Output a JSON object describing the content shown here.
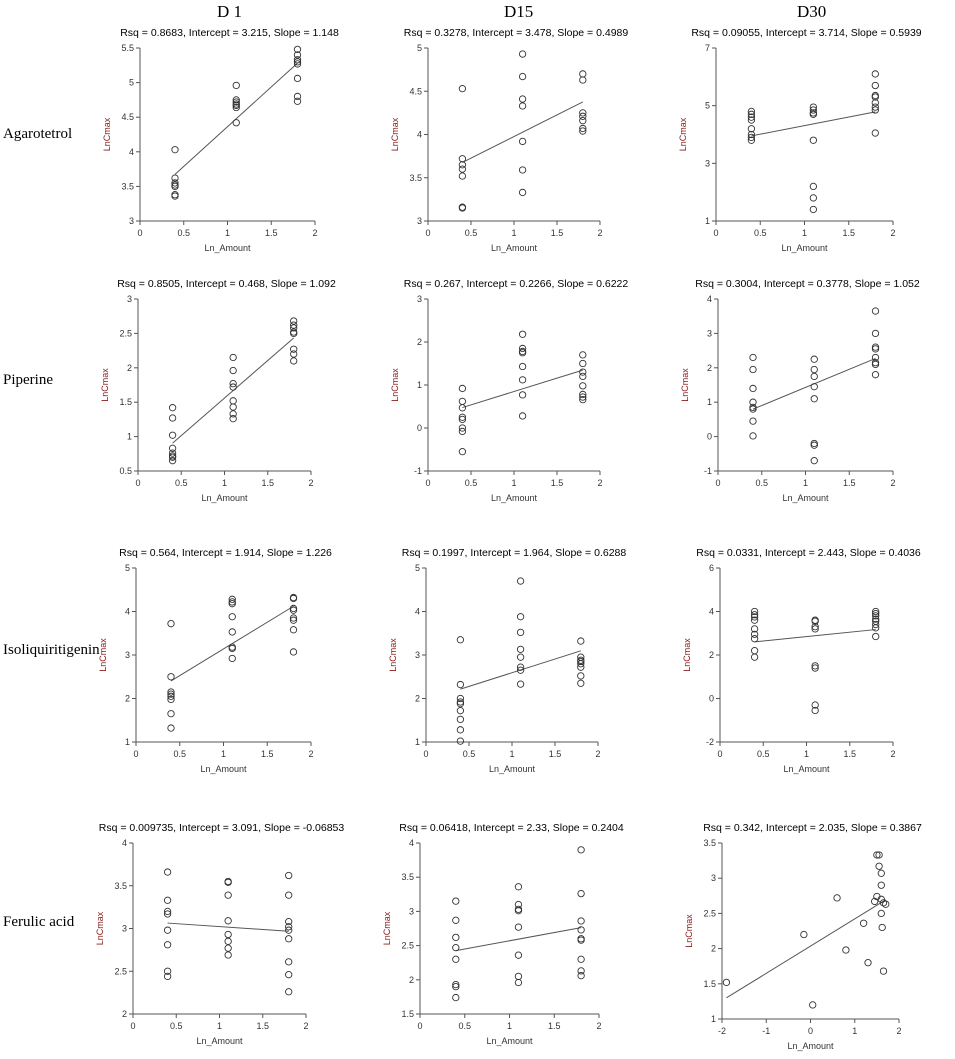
{
  "columns": [
    "D 1",
    "D15",
    "D30"
  ],
  "rows": [
    "Agarotetrol",
    "Piperine",
    "Isoliquiritigenin",
    "Ferulic acid"
  ],
  "style": {
    "axis_color": "#555555",
    "point_color": "#333333",
    "line_color": "#555555",
    "ylabel_color": "#8B1A1A"
  },
  "chart_data": [
    {
      "type": "scatter",
      "row": "Agarotetrol",
      "column": "D 1",
      "title": "Rsq = 0.8683, Intercept = 3.215, Slope = 1.148",
      "xlabel": "Ln_Amount",
      "ylabel": "LnCmax",
      "xlim": [
        0,
        2
      ],
      "ylim": [
        3,
        5.5
      ],
      "xticks": [
        0,
        0.5,
        1,
        1.5,
        2
      ],
      "xtick_labels": [
        "0",
        "0.5",
        "1",
        "1.5",
        "2"
      ],
      "yticks": [
        3,
        3.5,
        4,
        4.5,
        5,
        5.5
      ],
      "ytick_labels": [
        "3",
        "3.5",
        "4",
        "4.5",
        "5",
        "5.5"
      ],
      "fit": {
        "intercept": 3.215,
        "slope": 1.148,
        "x_range": [
          0.4,
          1.8
        ]
      },
      "x": [
        0.4,
        0.4,
        0.4,
        0.4,
        0.4,
        0.4,
        0.4,
        1.1,
        1.1,
        1.1,
        1.1,
        1.1,
        1.1,
        1.1,
        1.8,
        1.8,
        1.8,
        1.8,
        1.8,
        1.8,
        1.8,
        1.8
      ],
      "y": [
        4.03,
        3.62,
        3.55,
        3.52,
        3.5,
        3.38,
        3.36,
        4.96,
        4.75,
        4.72,
        4.69,
        4.67,
        4.64,
        4.42,
        5.48,
        5.4,
        5.33,
        5.3,
        5.27,
        5.06,
        4.8,
        4.73
      ]
    },
    {
      "type": "scatter",
      "row": "Agarotetrol",
      "column": "D15",
      "title": "Rsq = 0.3278, Intercept = 3.478, Slope = 0.4989",
      "xlabel": "Ln_Amount",
      "ylabel": "LnCmax",
      "xlim": [
        0,
        2
      ],
      "ylim": [
        3,
        5
      ],
      "xticks": [
        0,
        0.5,
        1,
        1.5,
        2
      ],
      "xtick_labels": [
        "0",
        "0.5",
        "1",
        "1.5",
        "2"
      ],
      "yticks": [
        3,
        3.5,
        4,
        4.5,
        5
      ],
      "ytick_labels": [
        "3",
        "3.5",
        "4",
        "4.5",
        "5"
      ],
      "fit": {
        "intercept": 3.478,
        "slope": 0.4989,
        "x_range": [
          0.4,
          1.8
        ]
      },
      "x": [
        0.4,
        0.4,
        0.4,
        0.4,
        0.4,
        0.4,
        0.4,
        1.1,
        1.1,
        1.1,
        1.1,
        1.1,
        1.1,
        1.1,
        1.8,
        1.8,
        1.8,
        1.8,
        1.8,
        1.8,
        1.8
      ],
      "y": [
        4.53,
        3.72,
        3.65,
        3.6,
        3.52,
        3.16,
        3.15,
        4.93,
        4.67,
        4.41,
        4.33,
        3.92,
        3.59,
        3.33,
        4.7,
        4.63,
        4.25,
        4.21,
        4.16,
        4.07,
        4.04
      ]
    },
    {
      "type": "scatter",
      "row": "Agarotetrol",
      "column": "D30",
      "title": "Rsq = 0.09055, Intercept = 3.714, Slope = 0.5939",
      "xlabel": "Ln_Amount",
      "ylabel": "LnCmax",
      "xlim": [
        0,
        2
      ],
      "ylim": [
        1,
        7
      ],
      "xticks": [
        0,
        0.5,
        1,
        1.5,
        2
      ],
      "xtick_labels": [
        "0",
        "0.5",
        "1",
        "1.5",
        "2"
      ],
      "yticks": [
        1,
        3,
        5,
        7
      ],
      "ytick_labels": [
        "1",
        "3",
        "5",
        "7"
      ],
      "fit": {
        "intercept": 3.714,
        "slope": 0.5939,
        "x_range": [
          0.4,
          1.8
        ]
      },
      "x": [
        0.4,
        0.4,
        0.4,
        0.4,
        0.4,
        0.4,
        0.4,
        0.4,
        1.1,
        1.1,
        1.1,
        1.1,
        1.1,
        1.1,
        1.1,
        1.1,
        1.8,
        1.8,
        1.8,
        1.8,
        1.8,
        1.8,
        1.8,
        1.8
      ],
      "y": [
        4.8,
        4.7,
        4.6,
        4.5,
        4.2,
        4.0,
        3.9,
        3.8,
        4.95,
        4.85,
        4.75,
        4.7,
        3.8,
        2.2,
        1.8,
        1.4,
        6.1,
        5.7,
        5.35,
        5.3,
        5.1,
        4.95,
        4.85,
        4.05
      ]
    },
    {
      "type": "scatter",
      "row": "Piperine",
      "column": "D 1",
      "title": "Rsq = 0.8505, Intercept = 0.468, Slope = 1.092",
      "xlabel": "Ln_Amount",
      "ylabel": "LnCmax",
      "xlim": [
        0,
        2
      ],
      "ylim": [
        0.5,
        3
      ],
      "xticks": [
        0,
        0.5,
        1,
        1.5,
        2
      ],
      "xtick_labels": [
        "0",
        "0.5",
        "1",
        "1.5",
        "2"
      ],
      "yticks": [
        0.5,
        1,
        1.5,
        2,
        2.5,
        3
      ],
      "ytick_labels": [
        "0.5",
        "1",
        "1.5",
        "2",
        "2.5",
        "3"
      ],
      "fit": {
        "intercept": 0.468,
        "slope": 1.092,
        "x_range": [
          0.4,
          1.8
        ]
      },
      "x": [
        0.4,
        0.4,
        0.4,
        0.4,
        0.4,
        0.4,
        0.4,
        0.4,
        1.1,
        1.1,
        1.1,
        1.1,
        1.1,
        1.1,
        1.1,
        1.1,
        1.8,
        1.8,
        1.8,
        1.8,
        1.8,
        1.8,
        1.8,
        1.8
      ],
      "y": [
        1.42,
        1.27,
        1.02,
        0.83,
        0.76,
        0.72,
        0.7,
        0.65,
        2.15,
        1.96,
        1.77,
        1.72,
        1.52,
        1.43,
        1.33,
        1.26,
        2.68,
        2.62,
        2.58,
        2.52,
        2.5,
        2.27,
        2.2,
        2.1
      ]
    },
    {
      "type": "scatter",
      "row": "Piperine",
      "column": "D15",
      "title": "Rsq = 0.267, Intercept = 0.2266, Slope = 0.6222",
      "xlabel": "Ln_Amount",
      "ylabel": "LnCmax",
      "xlim": [
        0,
        2
      ],
      "ylim": [
        -1,
        3
      ],
      "xticks": [
        0,
        0.5,
        1,
        1.5,
        2
      ],
      "xtick_labels": [
        "0",
        "0.5",
        "1",
        "1.5",
        "2"
      ],
      "yticks": [
        -1,
        0,
        1,
        2,
        3
      ],
      "ytick_labels": [
        "-1",
        "0",
        "1",
        "2",
        "3"
      ],
      "fit": {
        "intercept": 0.2266,
        "slope": 0.6222,
        "x_range": [
          0.4,
          1.8
        ]
      },
      "x": [
        0.4,
        0.4,
        0.4,
        0.4,
        0.4,
        0.4,
        0.4,
        0.4,
        1.1,
        1.1,
        1.1,
        1.1,
        1.1,
        1.1,
        1.1,
        1.1,
        1.8,
        1.8,
        1.8,
        1.8,
        1.8,
        1.8,
        1.8,
        1.8
      ],
      "y": [
        0.92,
        0.62,
        0.47,
        0.25,
        0.2,
        0.0,
        -0.08,
        -0.55,
        2.18,
        1.85,
        1.78,
        1.75,
        1.43,
        1.12,
        0.77,
        0.28,
        1.7,
        1.5,
        1.3,
        1.2,
        0.98,
        0.78,
        0.72,
        0.66
      ]
    },
    {
      "type": "scatter",
      "row": "Piperine",
      "column": "D30",
      "title": "Rsq = 0.3004, Intercept = 0.3778, Slope = 1.052",
      "xlabel": "Ln_Amount",
      "ylabel": "LnCmax",
      "xlim": [
        0,
        2
      ],
      "ylim": [
        -1,
        4
      ],
      "xticks": [
        0,
        0.5,
        1,
        1.5,
        2
      ],
      "xtick_labels": [
        "0",
        "0.5",
        "1",
        "1.5",
        "2"
      ],
      "yticks": [
        -1,
        0,
        1,
        2,
        3,
        4
      ],
      "ytick_labels": [
        "-1",
        "0",
        "1",
        "2",
        "3",
        "4"
      ],
      "fit": {
        "intercept": 0.3778,
        "slope": 1.052,
        "x_range": [
          0.4,
          1.8
        ]
      },
      "x": [
        0.4,
        0.4,
        0.4,
        0.4,
        0.4,
        0.4,
        0.4,
        0.4,
        1.1,
        1.1,
        1.1,
        1.1,
        1.1,
        1.1,
        1.1,
        1.1,
        1.8,
        1.8,
        1.8,
        1.8,
        1.8,
        1.8,
        1.8,
        1.8
      ],
      "y": [
        2.3,
        1.95,
        1.4,
        1.0,
        0.85,
        0.8,
        0.45,
        0.02,
        2.25,
        1.95,
        1.75,
        1.45,
        1.1,
        -0.2,
        -0.25,
        -0.7,
        3.65,
        3.0,
        2.6,
        2.55,
        2.3,
        2.15,
        2.1,
        1.8
      ]
    },
    {
      "type": "scatter",
      "row": "Isoliquiritigenin",
      "column": "D 1",
      "title": "Rsq = 0.564, Intercept = 1.914, Slope = 1.226",
      "xlabel": "Ln_Amount",
      "ylabel": "LnCmax",
      "xlim": [
        0,
        2
      ],
      "ylim": [
        1,
        5
      ],
      "xticks": [
        0,
        0.5,
        1,
        1.5,
        2
      ],
      "xtick_labels": [
        "0",
        "0.5",
        "1",
        "1.5",
        "2"
      ],
      "yticks": [
        1,
        2,
        3,
        4,
        5
      ],
      "ytick_labels": [
        "1",
        "2",
        "3",
        "4",
        "5"
      ],
      "fit": {
        "intercept": 1.914,
        "slope": 1.226,
        "x_range": [
          0.4,
          1.8
        ]
      },
      "x": [
        0.4,
        0.4,
        0.4,
        0.4,
        0.4,
        0.4,
        0.4,
        0.4,
        1.1,
        1.1,
        1.1,
        1.1,
        1.1,
        1.1,
        1.1,
        1.1,
        1.8,
        1.8,
        1.8,
        1.8,
        1.8,
        1.8,
        1.8,
        1.8
      ],
      "y": [
        3.72,
        2.5,
        2.15,
        2.1,
        2.05,
        1.98,
        1.65,
        1.32,
        4.28,
        4.22,
        4.18,
        3.88,
        3.53,
        3.18,
        3.15,
        2.92,
        4.32,
        4.3,
        4.07,
        4.03,
        3.85,
        3.8,
        3.58,
        3.07
      ]
    },
    {
      "type": "scatter",
      "row": "Isoliquiritigenin",
      "column": "D15",
      "title": "Rsq = 0.1997, Intercept = 1.964, Slope = 0.6288",
      "xlabel": "Ln_Amount",
      "ylabel": "LnCmax",
      "xlim": [
        0,
        2
      ],
      "ylim": [
        1,
        5
      ],
      "xticks": [
        0,
        0.5,
        1,
        1.5,
        2
      ],
      "xtick_labels": [
        "0",
        "0.5",
        "1",
        "1.5",
        "2"
      ],
      "yticks": [
        1,
        2,
        3,
        4,
        5
      ],
      "ytick_labels": [
        "1",
        "2",
        "3",
        "4",
        "5"
      ],
      "fit": {
        "intercept": 1.964,
        "slope": 0.6288,
        "x_range": [
          0.4,
          1.8
        ]
      },
      "x": [
        0.4,
        0.4,
        0.4,
        0.4,
        0.4,
        0.4,
        0.4,
        0.4,
        0.4,
        1.1,
        1.1,
        1.1,
        1.1,
        1.1,
        1.1,
        1.1,
        1.1,
        1.8,
        1.8,
        1.8,
        1.8,
        1.8,
        1.8,
        1.8,
        1.8
      ],
      "y": [
        3.35,
        2.32,
        2.0,
        1.92,
        1.88,
        1.72,
        1.52,
        1.28,
        1.02,
        4.7,
        3.88,
        3.52,
        3.13,
        2.95,
        2.72,
        2.65,
        2.33,
        3.32,
        2.95,
        2.88,
        2.85,
        2.8,
        2.72,
        2.52,
        2.35
      ]
    },
    {
      "type": "scatter",
      "row": "Isoliquiritigenin",
      "column": "D30",
      "title": "Rsq = 0.0331, Intercept = 2.443, Slope = 0.4036",
      "xlabel": "Ln_Amount",
      "ylabel": "LnCmax",
      "xlim": [
        0,
        2
      ],
      "ylim": [
        -2,
        6
      ],
      "xticks": [
        0,
        0.5,
        1,
        1.5,
        2
      ],
      "xtick_labels": [
        "0",
        "0.5",
        "1",
        "1.5",
        "2"
      ],
      "yticks": [
        -2,
        0,
        2,
        4,
        6
      ],
      "ytick_labels": [
        "-2",
        "0",
        "2",
        "4",
        "6"
      ],
      "fit": {
        "intercept": 2.443,
        "slope": 0.4036,
        "x_range": [
          0.4,
          1.8
        ]
      },
      "x": [
        0.4,
        0.4,
        0.4,
        0.4,
        0.4,
        0.4,
        0.4,
        0.4,
        0.4,
        1.1,
        1.1,
        1.1,
        1.1,
        1.1,
        1.1,
        1.1,
        1.1,
        1.8,
        1.8,
        1.8,
        1.8,
        1.8,
        1.8,
        1.8,
        1.8
      ],
      "y": [
        4.0,
        3.75,
        3.6,
        3.2,
        2.95,
        2.75,
        2.2,
        1.9,
        3.85,
        3.6,
        3.55,
        3.3,
        3.2,
        1.5,
        1.4,
        -0.3,
        -0.55,
        4.0,
        3.9,
        3.8,
        3.65,
        3.55,
        3.4,
        3.25,
        2.85
      ]
    },
    {
      "type": "scatter",
      "row": "Ferulic acid",
      "column": "D 1",
      "title": "Rsq = 0.009735, Intercept = 3.091, Slope = -0.06853",
      "xlabel": "Ln_Amount",
      "ylabel": "LnCmax",
      "xlim": [
        0,
        2
      ],
      "ylim": [
        2,
        4
      ],
      "xticks": [
        0,
        0.5,
        1,
        1.5,
        2
      ],
      "xtick_labels": [
        "0",
        "0.5",
        "1",
        "1.5",
        "2"
      ],
      "yticks": [
        2,
        2.5,
        3,
        3.5,
        4
      ],
      "ytick_labels": [
        "2",
        "2.5",
        "3",
        "3.5",
        "4"
      ],
      "fit": {
        "intercept": 3.091,
        "slope": -0.06853,
        "x_range": [
          0.4,
          1.8
        ]
      },
      "x": [
        0.4,
        0.4,
        0.4,
        0.4,
        0.4,
        0.4,
        0.4,
        0.4,
        1.1,
        1.1,
        1.1,
        1.1,
        1.1,
        1.1,
        1.1,
        1.1,
        1.8,
        1.8,
        1.8,
        1.8,
        1.8,
        1.8,
        1.8,
        1.8,
        1.8
      ],
      "y": [
        3.66,
        3.33,
        3.2,
        3.17,
        2.98,
        2.81,
        2.5,
        2.44,
        3.55,
        3.54,
        3.39,
        3.09,
        2.93,
        2.85,
        2.77,
        2.69,
        3.62,
        3.39,
        3.08,
        3.02,
        2.88,
        2.61,
        2.46,
        2.26,
        2.98
      ]
    },
    {
      "type": "scatter",
      "row": "Ferulic acid",
      "column": "D15",
      "title": "Rsq = 0.06418, Intercept = 2.33, Slope = 0.2404",
      "xlabel": "Ln_Amount",
      "ylabel": "LnCmax",
      "xlim": [
        0,
        2
      ],
      "ylim": [
        1.5,
        4
      ],
      "xticks": [
        0,
        0.5,
        1,
        1.5,
        2
      ],
      "xtick_labels": [
        "0",
        "0.5",
        "1",
        "1.5",
        "2"
      ],
      "yticks": [
        1.5,
        2,
        2.5,
        3,
        3.5,
        4
      ],
      "ytick_labels": [
        "1.5",
        "2",
        "2.5",
        "3",
        "3.5",
        "4"
      ],
      "fit": {
        "intercept": 2.33,
        "slope": 0.2404,
        "x_range": [
          0.4,
          1.8
        ]
      },
      "x": [
        0.4,
        0.4,
        0.4,
        0.4,
        0.4,
        0.4,
        0.4,
        0.4,
        1.1,
        1.1,
        1.1,
        1.1,
        1.1,
        1.1,
        1.1,
        1.1,
        1.8,
        1.8,
        1.8,
        1.8,
        1.8,
        1.8,
        1.8,
        1.8,
        1.8
      ],
      "y": [
        3.15,
        2.87,
        2.62,
        2.47,
        2.3,
        1.93,
        1.9,
        1.74,
        3.36,
        3.1,
        3.03,
        3.01,
        2.77,
        2.36,
        2.05,
        1.96,
        3.9,
        3.26,
        2.86,
        2.6,
        2.58,
        2.3,
        2.13,
        2.06,
        2.73
      ]
    },
    {
      "type": "scatter",
      "row": "Ferulic acid",
      "column": "D30",
      "title": "Rsq = 0.342, Intercept = 2.035, Slope = 0.3867",
      "xlabel": "Ln_Amount",
      "ylabel": "LnCmax",
      "xlim": [
        -2,
        2
      ],
      "ylim": [
        1,
        3.5
      ],
      "xticks": [
        -2,
        -1,
        0,
        1,
        2
      ],
      "xtick_labels": [
        "-2",
        "-1",
        "0",
        "1",
        "2"
      ],
      "yticks": [
        1,
        1.5,
        2,
        2.5,
        3,
        3.5
      ],
      "ytick_labels": [
        "1",
        "1.5",
        "2",
        "2.5",
        "3",
        "3.5"
      ],
      "fit": {
        "intercept": 2.035,
        "slope": 0.3867,
        "x_range": [
          -1.9,
          1.7
        ]
      },
      "x": [
        -1.9,
        -0.15,
        0.05,
        0.6,
        0.8,
        1.2,
        1.3,
        1.45,
        1.5,
        1.5,
        1.55,
        1.55,
        1.6,
        1.6,
        1.6,
        1.6,
        1.62,
        1.65,
        1.65,
        1.7
      ],
      "y": [
        1.52,
        2.2,
        1.2,
        2.72,
        1.98,
        2.36,
        1.8,
        2.67,
        2.74,
        3.33,
        3.33,
        3.17,
        3.07,
        2.9,
        2.7,
        2.5,
        2.3,
        1.68,
        2.65,
        2.63
      ]
    }
  ]
}
